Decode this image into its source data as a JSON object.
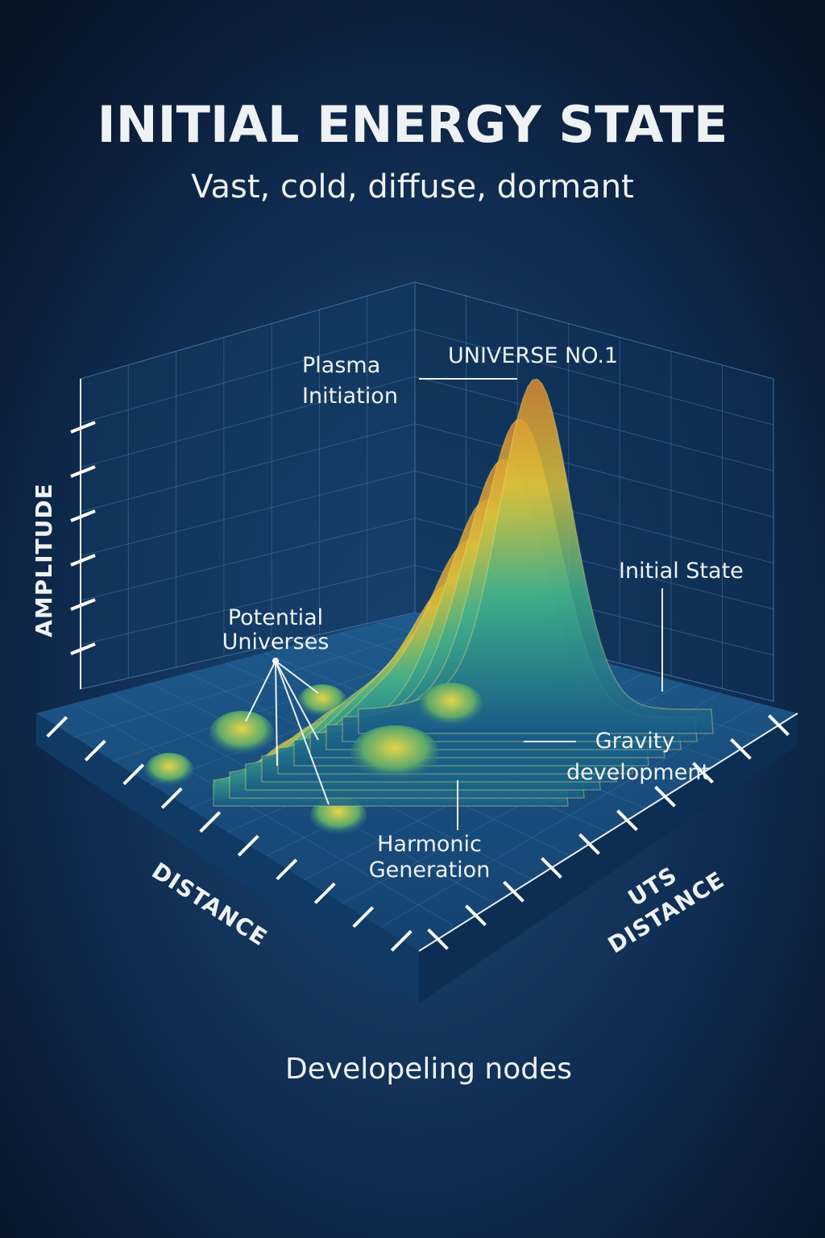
{
  "header": {
    "title": "INITIAL ENERGY STATE",
    "subtitle": "Vast, cold, diffuse, dormant"
  },
  "axes": {
    "vertical": "AMPLITUDE",
    "left": "DISTANCE",
    "right": [
      "UTS",
      "DISTANCE"
    ]
  },
  "annotations": {
    "universe": "UNIVERSE NO.1",
    "plasma": [
      "Plasma",
      "Initiation"
    ],
    "initial": "Initial State",
    "potential": [
      "Potential",
      "Universes"
    ],
    "gravity": [
      "Gravity",
      "development"
    ],
    "harmonic": [
      "Harmonic",
      "Generation"
    ]
  },
  "footer": "Developeling nodes"
}
